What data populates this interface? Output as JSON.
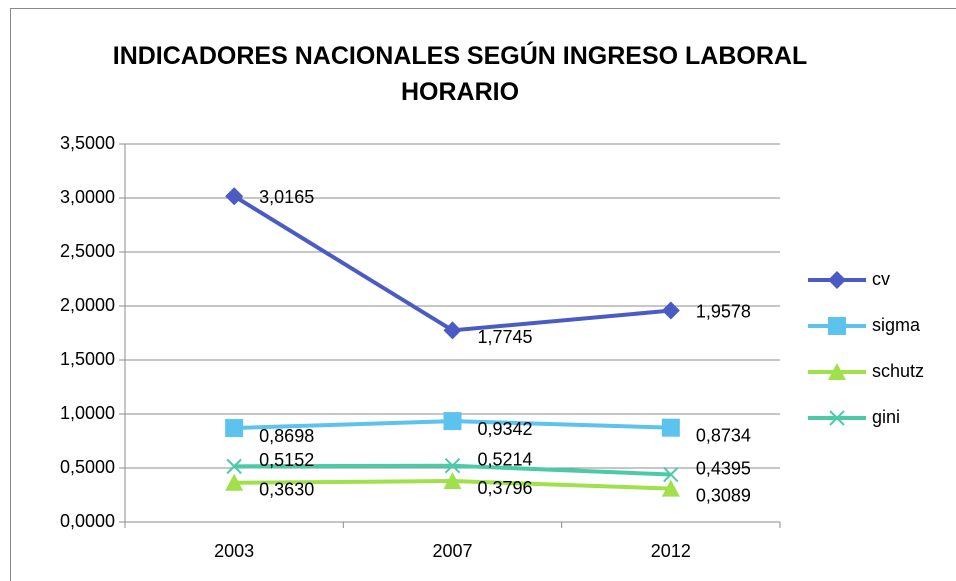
{
  "chart_data": {
    "type": "line",
    "title": "INDICADORES NACIONALES SEGÚN INGRESO LABORAL HORARIO",
    "categories": [
      "2003",
      "2007",
      "2012"
    ],
    "series": [
      {
        "name": "cv",
        "color": "#4a5bc4",
        "marker": "diamond",
        "values": [
          3.0165,
          1.7745,
          1.9578
        ],
        "value_labels": [
          "3,0165",
          "1,7745",
          "1,9578"
        ]
      },
      {
        "name": "sigma",
        "color": "#5bc3ee",
        "marker": "square",
        "values": [
          0.8698,
          0.9342,
          0.8734
        ],
        "value_labels": [
          "0,8698",
          "0,9342",
          "0,8734"
        ]
      },
      {
        "name": "schutz",
        "color": "#9fe04b",
        "marker": "triangle",
        "values": [
          0.363,
          0.3796,
          0.3089
        ],
        "value_labels": [
          "0,3630",
          "0,3796",
          "0,3089"
        ]
      },
      {
        "name": "gini",
        "color": "#4ccaa8",
        "marker": "x",
        "values": [
          0.5152,
          0.5214,
          0.4395
        ],
        "value_labels": [
          "0,5152",
          "0,5214",
          "0,4395"
        ]
      }
    ],
    "ylim": [
      0,
      3.5
    ],
    "yticks": [
      {
        "value": 0,
        "label": "0,0000"
      },
      {
        "value": 0.5,
        "label": "0,5000"
      },
      {
        "value": 1,
        "label": "1,0000"
      },
      {
        "value": 1.5,
        "label": "1,5000"
      },
      {
        "value": 2,
        "label": "2,0000"
      },
      {
        "value": 2.5,
        "label": "2,5000"
      },
      {
        "value": 3,
        "label": "3,0000"
      },
      {
        "value": 3.5,
        "label": "3,5000"
      }
    ],
    "grid": true,
    "legend": "right"
  }
}
